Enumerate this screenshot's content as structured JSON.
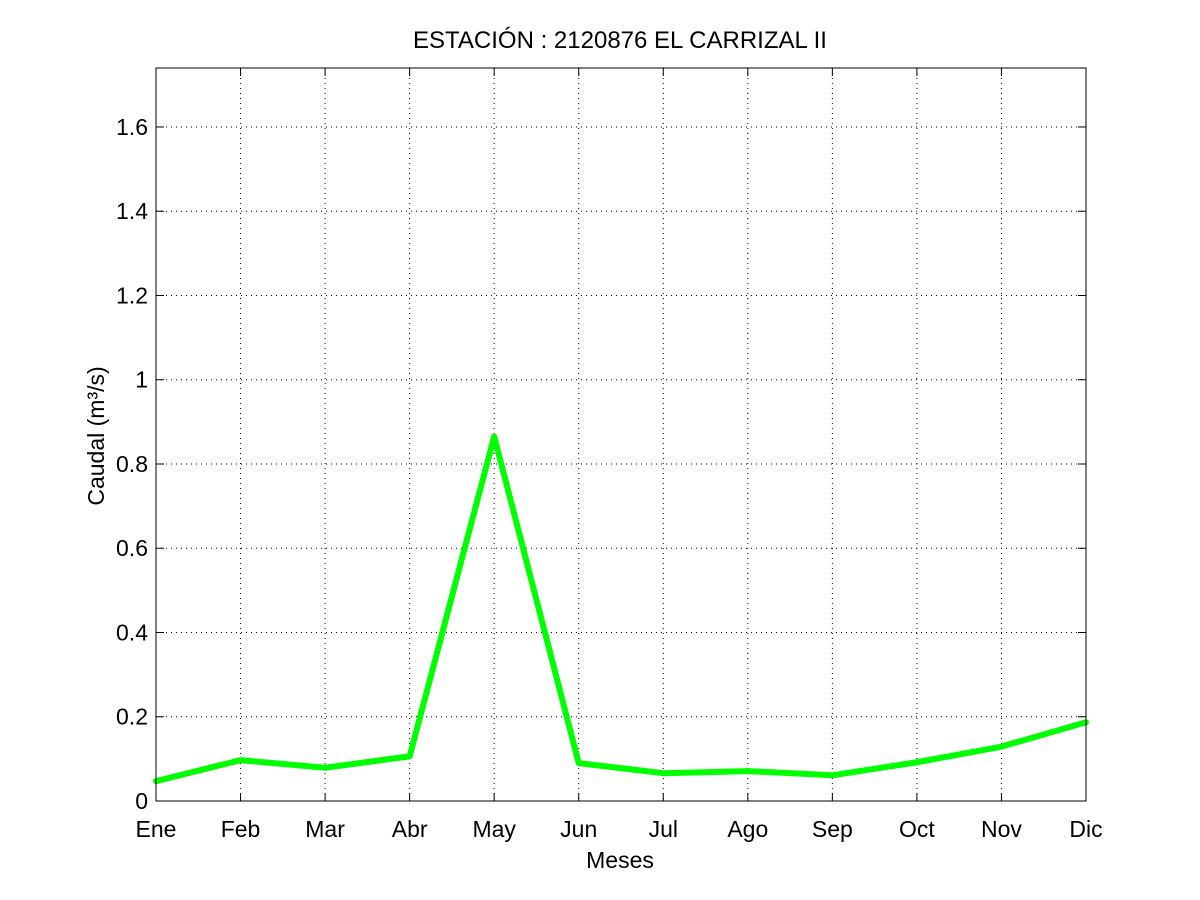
{
  "chart_data": {
    "type": "line",
    "title": "ESTACIÓN :  2120876  EL CARRIZAL II",
    "xlabel": "Meses",
    "ylabel": "Caudal (m³/s)",
    "categories": [
      "Ene",
      "Feb",
      "Mar",
      "Abr",
      "May",
      "Jun",
      "Jul",
      "Ago",
      "Sep",
      "Oct",
      "Nov",
      "Dic"
    ],
    "series": [
      {
        "values": [
          0.047,
          0.097,
          0.079,
          0.106,
          0.865,
          0.09,
          0.066,
          0.071,
          0.061,
          0.092,
          0.129,
          0.187
        ],
        "color": "#00ff00"
      }
    ],
    "ylim": [
      0,
      1.74
    ],
    "yticks": [
      0,
      0.2,
      0.4,
      0.6,
      0.8,
      1.0,
      1.2,
      1.4,
      1.6
    ],
    "ytick_labels": [
      "0",
      "0.2",
      "0.4",
      "0.6",
      "0.8",
      "1",
      "1.2",
      "1.4",
      "1.6"
    ],
    "grid": true
  }
}
